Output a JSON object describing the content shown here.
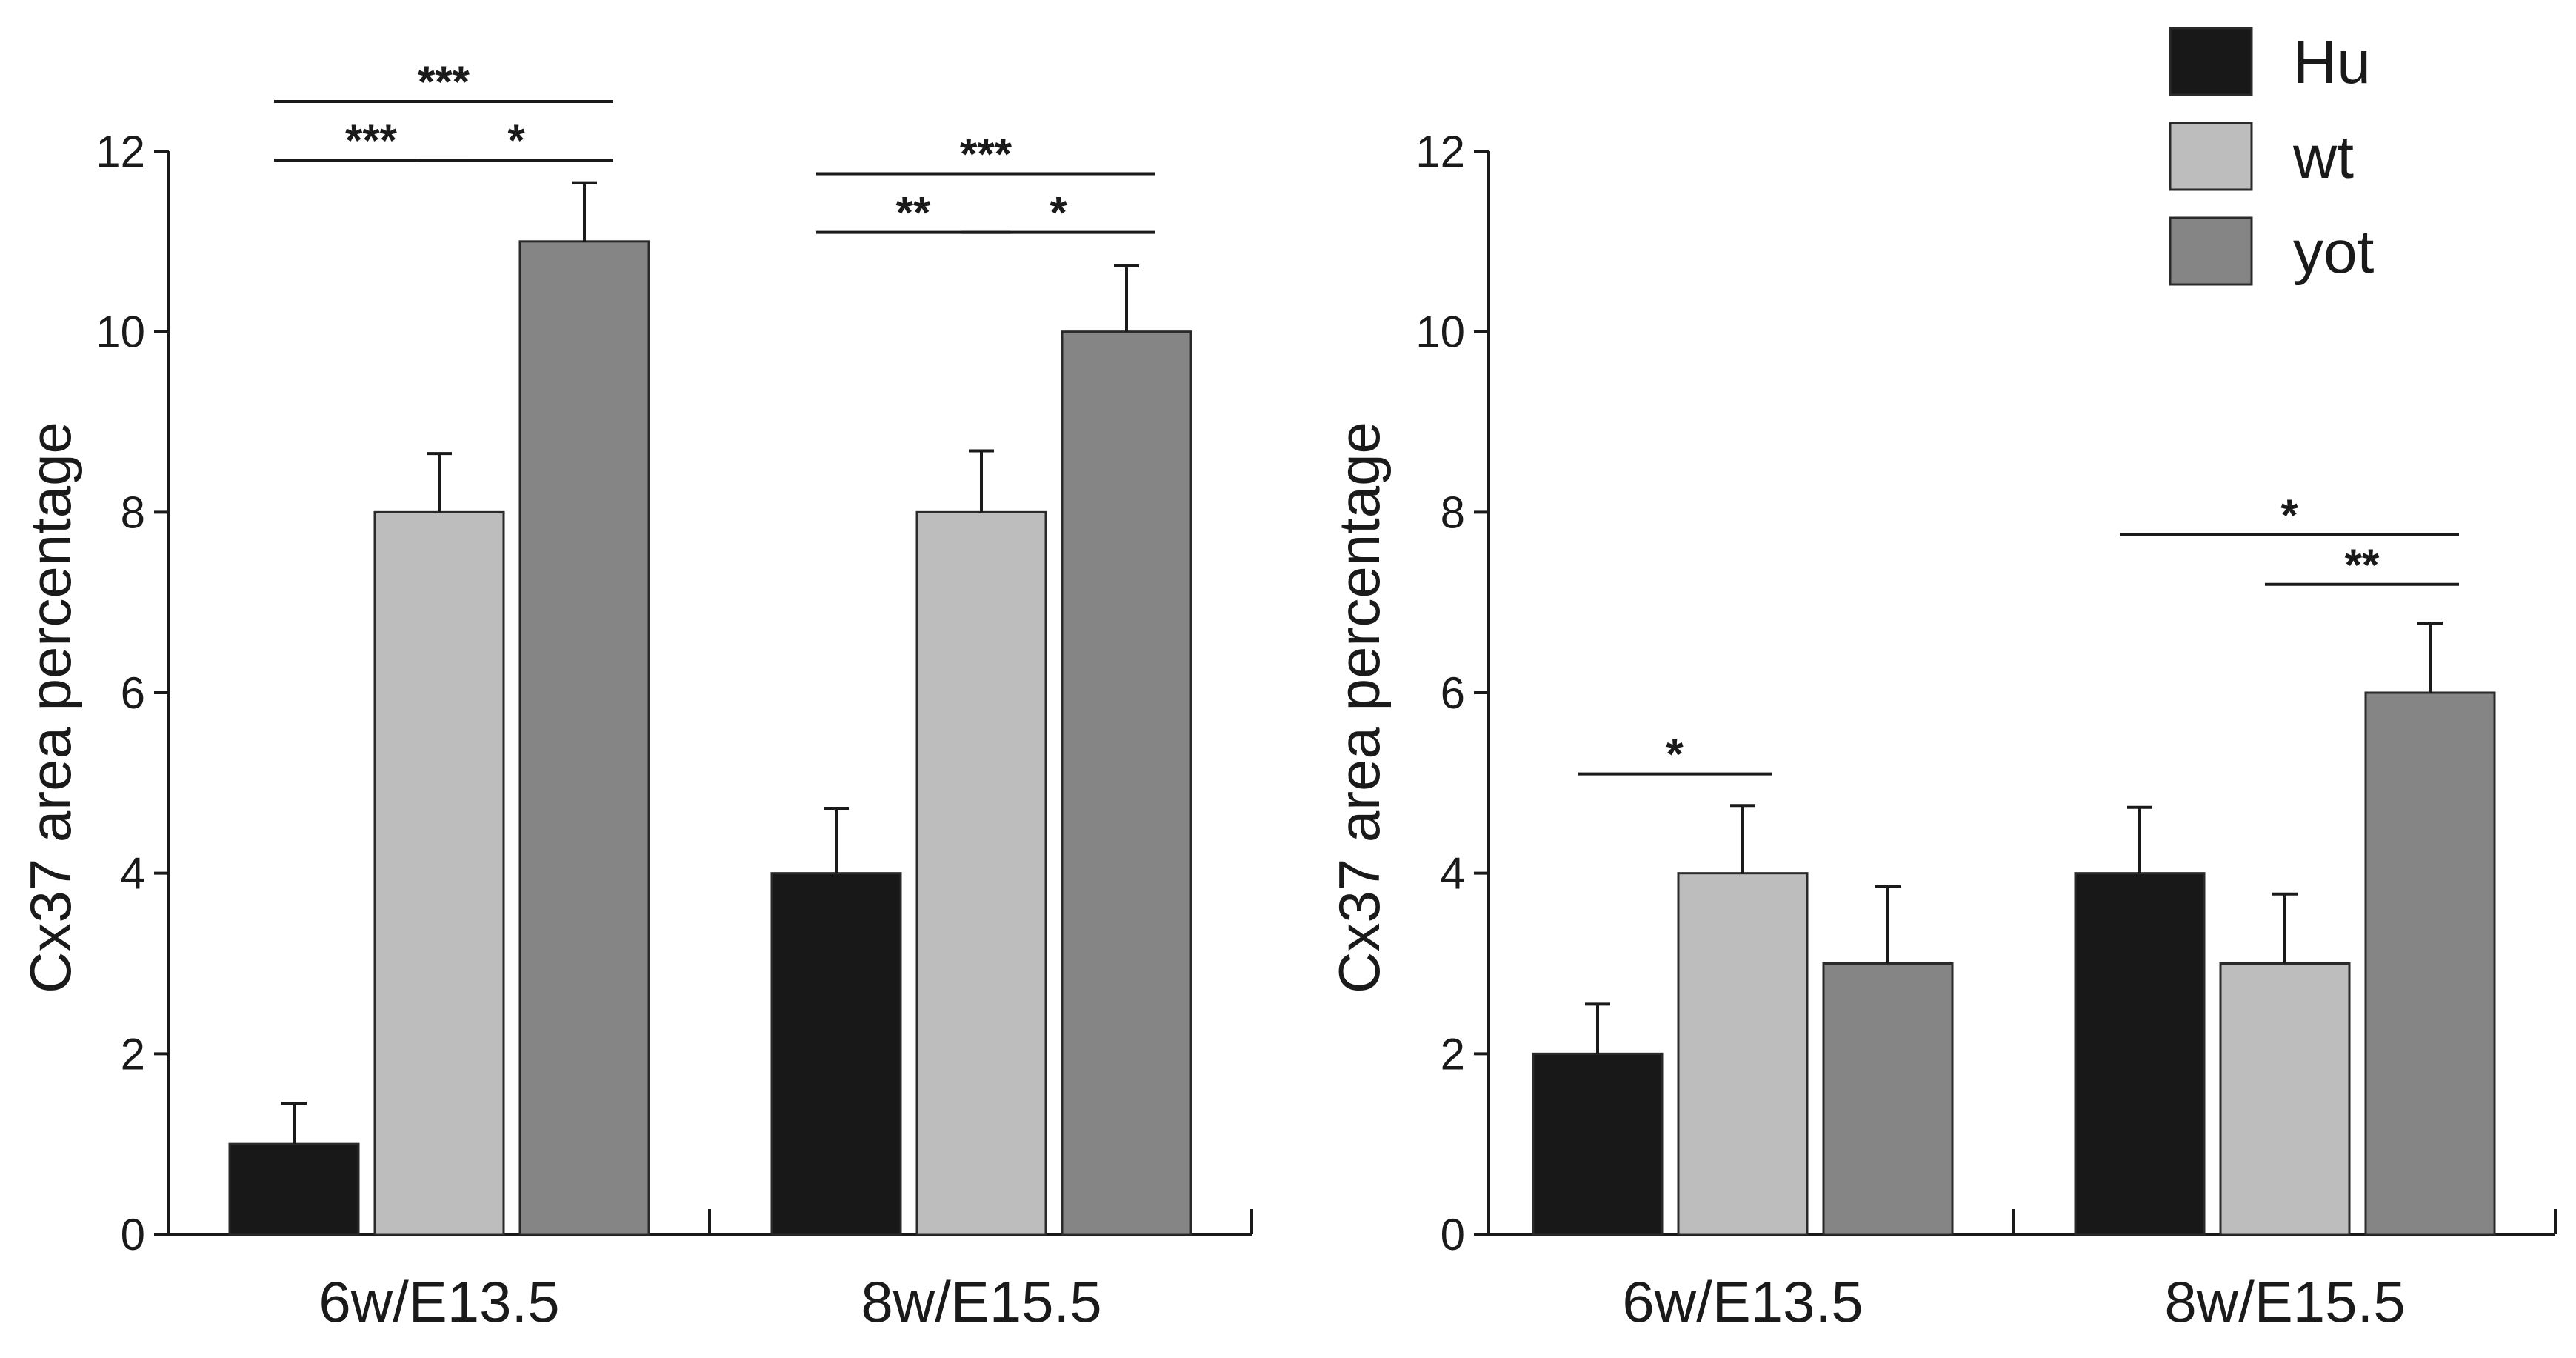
{
  "chart_data": [
    {
      "type": "bar",
      "title": "",
      "xlabel": "",
      "ylabel": "Cx37 area percentage",
      "ylim": [
        0,
        12
      ],
      "yticks": [
        0,
        2,
        4,
        6,
        8,
        10,
        12
      ],
      "categories": [
        "6w/E13.5",
        "8w/E15.5"
      ],
      "series": [
        {
          "name": "Hu",
          "color": "#181818",
          "values": [
            1,
            4
          ],
          "errors": [
            0.45,
            0.72
          ]
        },
        {
          "name": "wt",
          "color": "#bdbdbd",
          "values": [
            8,
            8
          ],
          "errors": [
            0.65,
            0.68
          ]
        },
        {
          "name": "yot",
          "color": "#858585",
          "values": [
            11,
            10
          ],
          "errors": [
            0.65,
            0.73
          ]
        }
      ],
      "significance": [
        {
          "category": 0,
          "from": "Hu",
          "to": "wt",
          "label": "***",
          "level": 11.9
        },
        {
          "category": 0,
          "from": "wt",
          "to": "yot",
          "label": "*",
          "level": 11.9
        },
        {
          "category": 0,
          "from": "Hu",
          "to": "yot",
          "label": "***",
          "level": 12.55
        },
        {
          "category": 1,
          "from": "Hu",
          "to": "wt",
          "label": "**",
          "level": 11.1
        },
        {
          "category": 1,
          "from": "wt",
          "to": "yot",
          "label": "*",
          "level": 11.1
        },
        {
          "category": 1,
          "from": "Hu",
          "to": "yot",
          "label": "***",
          "level": 11.75
        }
      ]
    },
    {
      "type": "bar",
      "title": "",
      "xlabel": "",
      "ylabel": "Cx37 area percentage",
      "ylim": [
        0,
        12
      ],
      "yticks": [
        0,
        2,
        4,
        6,
        8,
        10,
        12
      ],
      "categories": [
        "6w/E13.5",
        "8w/E15.5"
      ],
      "series": [
        {
          "name": "Hu",
          "color": "#181818",
          "values": [
            2,
            4
          ],
          "errors": [
            0.55,
            0.73
          ]
        },
        {
          "name": "wt",
          "color": "#bdbdbd",
          "values": [
            4,
            3
          ],
          "errors": [
            0.75,
            0.77
          ]
        },
        {
          "name": "yot",
          "color": "#858585",
          "values": [
            3,
            6
          ],
          "errors": [
            0.85,
            0.77
          ]
        }
      ],
      "significance": [
        {
          "category": 0,
          "from": "Hu",
          "to": "wt",
          "label": "*",
          "level": 5.1
        },
        {
          "category": 1,
          "from": "wt",
          "to": "yot",
          "label": "**",
          "level": 7.2
        },
        {
          "category": 1,
          "from": "Hu",
          "to": "yot",
          "label": "*",
          "level": 7.75
        }
      ]
    }
  ],
  "legend": {
    "position": "top-right",
    "items": [
      {
        "label": "Hu",
        "color": "#181818"
      },
      {
        "label": "wt",
        "color": "#bdbdbd"
      },
      {
        "label": "yot",
        "color": "#858585"
      }
    ]
  }
}
